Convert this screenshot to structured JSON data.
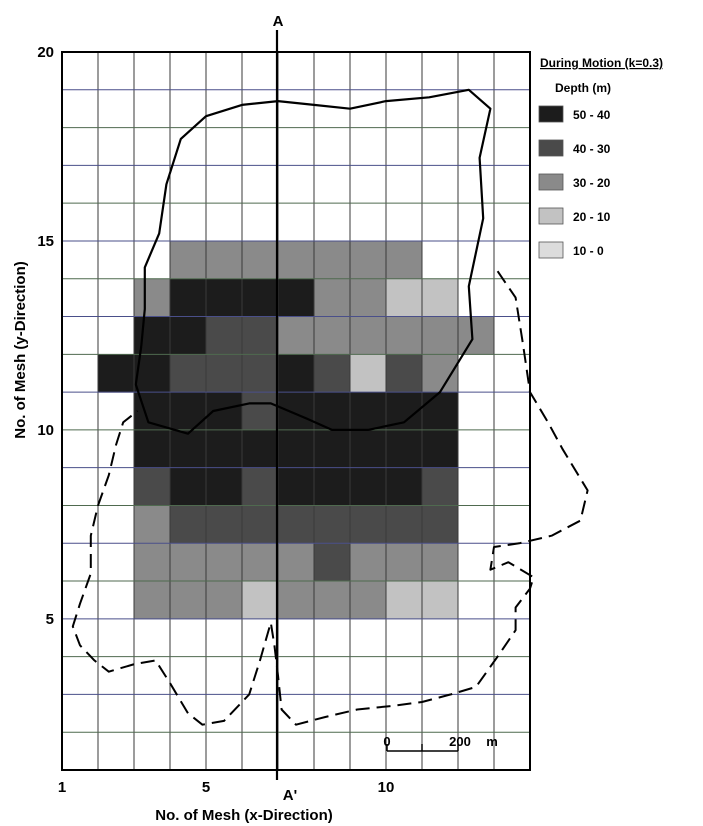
{
  "chart_data": {
    "type": "heatmap",
    "xlabel": "No. of Mesh (x-Direction)",
    "ylabel": "No. of Mesh (y-Direction)",
    "xlim": [
      1,
      14
    ],
    "ylim": [
      1,
      20
    ],
    "x_ticks": [
      "1",
      "5",
      "10"
    ],
    "y_ticks": [
      "5",
      "10",
      "15",
      "20"
    ],
    "grid": true,
    "legend": {
      "title": "During Motion  (k=0.3)",
      "subtitle": "Depth  (m)",
      "placement": "top-right",
      "classes": [
        {
          "label": "50 - 40",
          "color": "#1c1c1c"
        },
        {
          "label": "40 - 30",
          "color": "#4a4a4a"
        },
        {
          "label": "30 - 20",
          "color": "#8a8a8a"
        },
        {
          "label": "20 - 10",
          "color": "#c2c2c2"
        },
        {
          "label": "10 - 0",
          "color": "#dcdcdc"
        }
      ]
    },
    "section_line": {
      "top_label": "A",
      "bottom_label": "A'",
      "x": 7
    },
    "scale_bar": {
      "labels": [
        "0",
        "200",
        "m"
      ]
    },
    "cells": [
      [
        4,
        14,
        2
      ],
      [
        5,
        14,
        2
      ],
      [
        6,
        14,
        2
      ],
      [
        7,
        14,
        2
      ],
      [
        8,
        14,
        2
      ],
      [
        9,
        14,
        2
      ],
      [
        10,
        14,
        2
      ],
      [
        3,
        13,
        2
      ],
      [
        4,
        13,
        0
      ],
      [
        5,
        13,
        0
      ],
      [
        6,
        13,
        0
      ],
      [
        7,
        13,
        0
      ],
      [
        8,
        13,
        2
      ],
      [
        9,
        13,
        2
      ],
      [
        10,
        13,
        3
      ],
      [
        11,
        13,
        3
      ],
      [
        3,
        12,
        0
      ],
      [
        4,
        12,
        0
      ],
      [
        5,
        12,
        1
      ],
      [
        6,
        12,
        1
      ],
      [
        7,
        12,
        2
      ],
      [
        8,
        12,
        2
      ],
      [
        9,
        12,
        2
      ],
      [
        10,
        12,
        2
      ],
      [
        11,
        12,
        2
      ],
      [
        12,
        12,
        2
      ],
      [
        2,
        11,
        0
      ],
      [
        3,
        11,
        0
      ],
      [
        4,
        11,
        1
      ],
      [
        5,
        11,
        1
      ],
      [
        6,
        11,
        1
      ],
      [
        7,
        11,
        0
      ],
      [
        8,
        11,
        1
      ],
      [
        9,
        11,
        3
      ],
      [
        10,
        11,
        1
      ],
      [
        11,
        11,
        2
      ],
      [
        3,
        10,
        0
      ],
      [
        4,
        10,
        0
      ],
      [
        5,
        10,
        0
      ],
      [
        6,
        10,
        1
      ],
      [
        7,
        10,
        0
      ],
      [
        8,
        10,
        0
      ],
      [
        9,
        10,
        0
      ],
      [
        10,
        10,
        0
      ],
      [
        11,
        10,
        0
      ],
      [
        3,
        9,
        0
      ],
      [
        4,
        9,
        0
      ],
      [
        5,
        9,
        0
      ],
      [
        6,
        9,
        0
      ],
      [
        7,
        9,
        0
      ],
      [
        8,
        9,
        0
      ],
      [
        9,
        9,
        0
      ],
      [
        10,
        9,
        0
      ],
      [
        11,
        9,
        0
      ],
      [
        3,
        8,
        1
      ],
      [
        4,
        8,
        0
      ],
      [
        5,
        8,
        0
      ],
      [
        6,
        8,
        1
      ],
      [
        7,
        8,
        0
      ],
      [
        8,
        8,
        0
      ],
      [
        9,
        8,
        0
      ],
      [
        10,
        8,
        0
      ],
      [
        11,
        8,
        1
      ],
      [
        3,
        7,
        2
      ],
      [
        4,
        7,
        1
      ],
      [
        5,
        7,
        1
      ],
      [
        6,
        7,
        1
      ],
      [
        7,
        7,
        1
      ],
      [
        8,
        7,
        1
      ],
      [
        9,
        7,
        1
      ],
      [
        10,
        7,
        1
      ],
      [
        11,
        7,
        1
      ],
      [
        3,
        6,
        2
      ],
      [
        4,
        6,
        2
      ],
      [
        5,
        6,
        2
      ],
      [
        6,
        6,
        2
      ],
      [
        7,
        6,
        2
      ],
      [
        8,
        6,
        1
      ],
      [
        9,
        6,
        2
      ],
      [
        10,
        6,
        2
      ],
      [
        11,
        6,
        2
      ],
      [
        3,
        5,
        2
      ],
      [
        4,
        5,
        2
      ],
      [
        5,
        5,
        2
      ],
      [
        6,
        5,
        3
      ],
      [
        7,
        5,
        2
      ],
      [
        8,
        5,
        2
      ],
      [
        9,
        5,
        2
      ],
      [
        10,
        5,
        3
      ],
      [
        11,
        5,
        3
      ]
    ],
    "solid_outline": [
      [
        3.2,
        12.2
      ],
      [
        3.05,
        11.2
      ],
      [
        3.4,
        10.2
      ],
      [
        4.5,
        9.9
      ],
      [
        5.2,
        10.5
      ],
      [
        6.2,
        10.7
      ],
      [
        6.8,
        10.7
      ],
      [
        7.8,
        10.3
      ],
      [
        8.5,
        10.0
      ],
      [
        9.5,
        10.0
      ],
      [
        10.5,
        10.2
      ],
      [
        11.5,
        11.0
      ],
      [
        12.4,
        12.4
      ],
      [
        12.3,
        13.8
      ],
      [
        12.7,
        15.6
      ],
      [
        12.6,
        17.2
      ],
      [
        12.9,
        18.5
      ],
      [
        12.3,
        19.0
      ],
      [
        11.2,
        18.8
      ],
      [
        10.0,
        18.7
      ],
      [
        9.0,
        18.5
      ],
      [
        8.0,
        18.6
      ],
      [
        7.0,
        18.7
      ],
      [
        6.0,
        18.6
      ],
      [
        5.0,
        18.3
      ],
      [
        4.3,
        17.7
      ],
      [
        3.9,
        16.5
      ],
      [
        3.7,
        15.2
      ],
      [
        3.3,
        14.3
      ],
      [
        3.3,
        13.2
      ],
      [
        3.2,
        12.2
      ]
    ],
    "dashed_outline": [
      [
        13.1,
        14.2
      ],
      [
        13.6,
        13.5
      ],
      [
        13.8,
        12.3
      ],
      [
        14.0,
        11.0
      ],
      [
        14.5,
        10.2
      ],
      [
        14.9,
        9.5
      ],
      [
        15.6,
        8.4
      ],
      [
        15.4,
        7.6
      ],
      [
        14.6,
        7.2
      ],
      [
        13.7,
        7.0
      ],
      [
        13.0,
        6.9
      ],
      [
        12.9,
        6.3
      ],
      [
        13.4,
        6.5
      ],
      [
        14.1,
        6.1
      ],
      [
        14.0,
        5.8
      ],
      [
        13.6,
        5.3
      ],
      [
        13.6,
        4.7
      ],
      [
        13.1,
        4.0
      ],
      [
        12.5,
        3.2
      ],
      [
        11.8,
        3.0
      ],
      [
        11.0,
        2.8
      ],
      [
        10.2,
        2.7
      ],
      [
        9.2,
        2.6
      ],
      [
        8.3,
        2.4
      ],
      [
        7.5,
        2.2
      ],
      [
        7.1,
        2.6
      ],
      [
        7.0,
        3.5
      ],
      [
        6.9,
        4.3
      ],
      [
        6.8,
        4.9
      ],
      [
        6.5,
        3.9
      ],
      [
        6.2,
        3.0
      ],
      [
        5.5,
        2.3
      ],
      [
        4.9,
        2.2
      ],
      [
        4.5,
        2.5
      ],
      [
        4.0,
        3.3
      ],
      [
        3.6,
        3.9
      ],
      [
        3.0,
        3.8
      ],
      [
        2.3,
        3.6
      ],
      [
        1.9,
        3.9
      ],
      [
        1.5,
        4.3
      ],
      [
        1.3,
        4.8
      ],
      [
        1.5,
        5.4
      ],
      [
        1.8,
        6.2
      ],
      [
        1.8,
        7.2
      ],
      [
        2.0,
        8.0
      ],
      [
        2.3,
        8.8
      ],
      [
        2.5,
        9.6
      ],
      [
        2.7,
        10.2
      ],
      [
        3.1,
        10.5
      ]
    ]
  }
}
